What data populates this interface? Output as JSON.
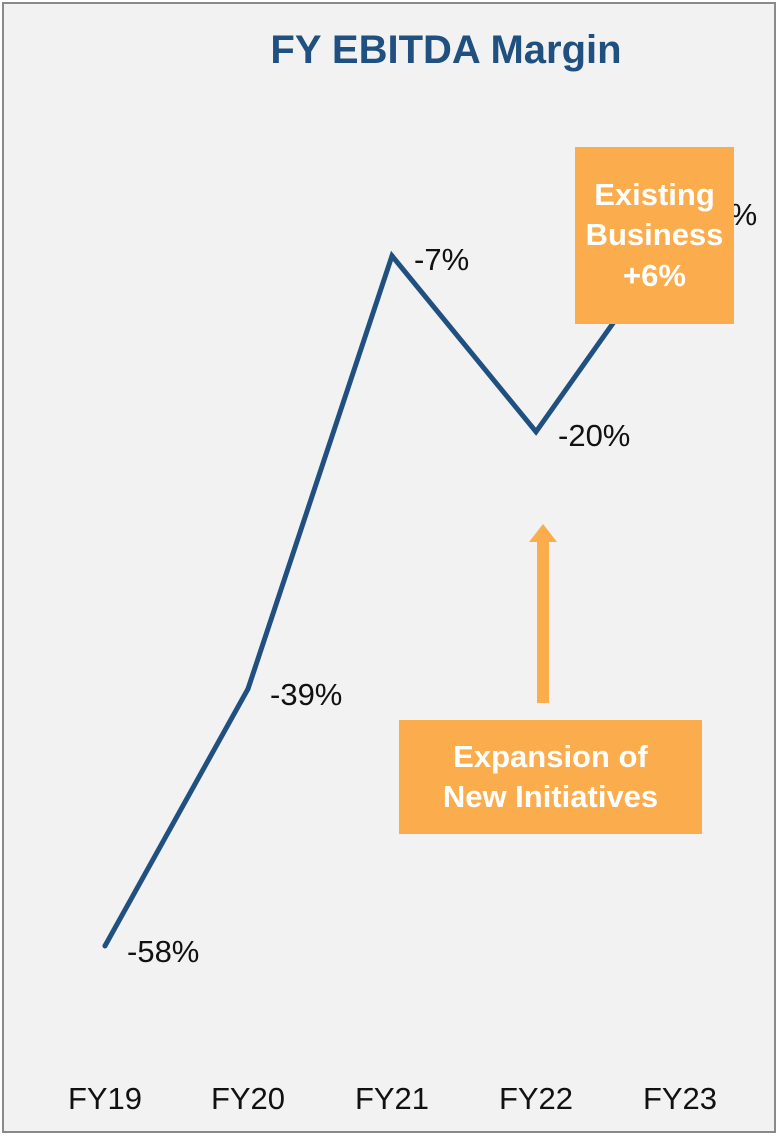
{
  "chart_data": {
    "type": "line",
    "title": "FY EBITDA Margin",
    "categories": [
      "FY19",
      "FY20",
      "FY21",
      "FY22",
      "FY23"
    ],
    "values": [
      -58,
      -39,
      -7,
      -20,
      -5
    ],
    "data_labels": [
      "-58%",
      "-39%",
      "-7%",
      "-20%",
      "-5%"
    ],
    "series_color": "#1f5080",
    "ylim": [
      -62,
      6
    ],
    "grid": false,
    "annotations": [
      {
        "text": "Existing\nBusiness\n+6%",
        "color": "#fbac4c"
      },
      {
        "text": "Expansion of\nNew Initiatives",
        "color": "#fbac4c"
      }
    ]
  }
}
